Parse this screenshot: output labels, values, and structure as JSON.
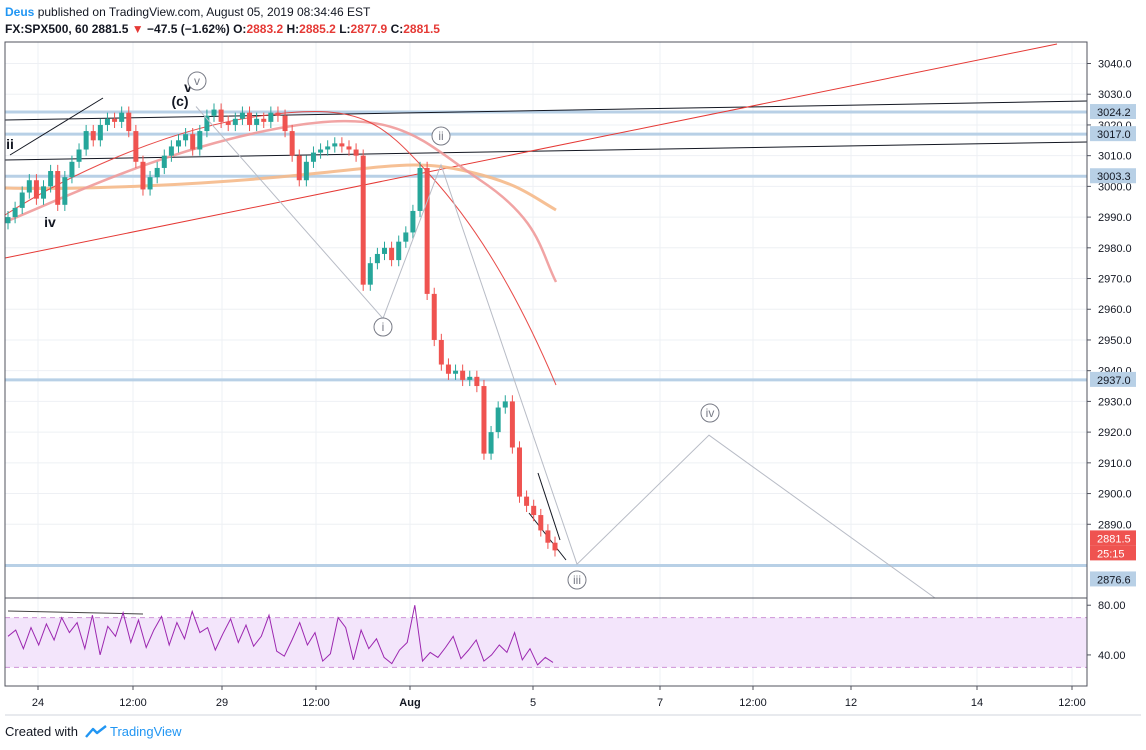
{
  "header": {
    "author": "Deus",
    "published_text": "published on TradingView.com, August 05, 2019 08:34:46 EST",
    "symbol": "FX:SPX500, 60",
    "last": "2881.5",
    "change_arrow": "▼",
    "change": "−47.5 (−1.62%)",
    "ohlc_labels": {
      "o": "O:",
      "h": "H:",
      "l": "L:",
      "c": "C:"
    },
    "ohlc_values": {
      "o": "2883.2",
      "h": "2885.2",
      "l": "2877.9",
      "c": "2881.5"
    }
  },
  "footer": {
    "created_with": "Created with",
    "brand": "TradingView",
    "logo_icon": "tradingview-logo-icon"
  },
  "colors": {
    "price_up": "#26a69a",
    "price_down": "#ef5350",
    "ma_slow": "#f5b98a",
    "ma_mid": "#ef9a9a",
    "ma_fast": "#e53935",
    "level_line": "#b8d0e6",
    "trendline": "#131722",
    "red_trend": "#e53935",
    "wave_path": "#b8bcc6",
    "rsi": "#9c27b0",
    "rsi_band": "#f3e5fb"
  },
  "chart_data": [
    {
      "type": "line",
      "chart": "price",
      "y_axis_ticks": [
        "3040.0",
        "3030.0",
        "3020.0",
        "3010.0",
        "3000.0",
        "2990.0",
        "2980.0",
        "2970.0",
        "2960.0",
        "2950.0",
        "2940.0",
        "2930.0",
        "2920.0",
        "2910.0",
        "2900.0",
        "2890.0"
      ],
      "ylim": [
        2866,
        3047
      ],
      "x_axis_ticks": [
        "24",
        "12:00",
        "29",
        "12:00",
        "Aug",
        "5",
        "7",
        "12:00",
        "12",
        "14",
        "12:00"
      ],
      "series": [
        {
          "values": [
            2990,
            2993,
            2998,
            3002,
            2996,
            3000,
            3005,
            2994,
            3003,
            3008,
            3012,
            3018,
            3015,
            3020,
            3022,
            3021,
            3024,
            3018,
            3008,
            2999,
            3003,
            3006,
            3010,
            3013,
            3015,
            3017,
            3012,
            3018,
            3023,
            3025,
            3021,
            3020,
            3022,
            3024,
            3020,
            3022,
            3021,
            3024,
            3023,
            3018,
            3010,
            3002,
            3008,
            3011,
            3012,
            3013,
            3014,
            3013,
            3012,
            3010,
            2968,
            2975,
            2978,
            2980,
            2976,
            2982,
            2985,
            2992,
            3006,
            2965,
            2950,
            2942,
            2939,
            2940,
            2937,
            2938,
            2935,
            2913,
            2920,
            2928,
            2930,
            2915,
            2899,
            2896,
            2893,
            2888,
            2884,
            2881.5
          ]
        }
      ],
      "levels": [
        {
          "value": 3024.2,
          "label": "3024.2"
        },
        {
          "value": 3017.0,
          "label": "3017.0"
        },
        {
          "value": 3003.3,
          "label": "3003.3"
        },
        {
          "value": 2937.0,
          "label": "2937.0"
        },
        {
          "value": 2876.6,
          "label": "2876.6"
        }
      ],
      "last_price_label": "2881.5",
      "countdown_label": "25:15",
      "wave_labels": [
        {
          "text": "ii",
          "style": "plain"
        },
        {
          "text": "iv",
          "style": "plain"
        },
        {
          "text": "(c)",
          "style": "plain"
        },
        {
          "text": "v",
          "style": "plain"
        },
        {
          "text": "v",
          "style": "circled"
        },
        {
          "text": "i",
          "style": "circled"
        },
        {
          "text": "ii",
          "style": "circled"
        },
        {
          "text": "iii",
          "style": "circled"
        },
        {
          "text": "iv",
          "style": "circled"
        }
      ],
      "wave_projection": [
        {
          "label": "v",
          "value": 3026
        },
        {
          "label": "i",
          "value": 2957
        },
        {
          "label": "ii",
          "value": 3007
        },
        {
          "label": "iii",
          "value": 2877
        },
        {
          "label": "iv",
          "value": 2919
        }
      ]
    },
    {
      "type": "line",
      "chart": "rsi",
      "y_axis_ticks": [
        "80.00",
        "40.00"
      ],
      "band": [
        30,
        70
      ],
      "ylim": [
        15,
        85
      ],
      "values": [
        55,
        60,
        45,
        62,
        48,
        65,
        52,
        70,
        58,
        66,
        45,
        72,
        40,
        63,
        55,
        74,
        50,
        68,
        46,
        60,
        71,
        48,
        66,
        53,
        75,
        58,
        62,
        44,
        57,
        69,
        50,
        64,
        47,
        55,
        72,
        43,
        39,
        52,
        66,
        48,
        58,
        35,
        41,
        70,
        62,
        36,
        60,
        45,
        53,
        38,
        33,
        44,
        50,
        80,
        35,
        42,
        38,
        46,
        55,
        37,
        44,
        52,
        35,
        40,
        48,
        42,
        58,
        36,
        45,
        32,
        38,
        34
      ]
    }
  ]
}
